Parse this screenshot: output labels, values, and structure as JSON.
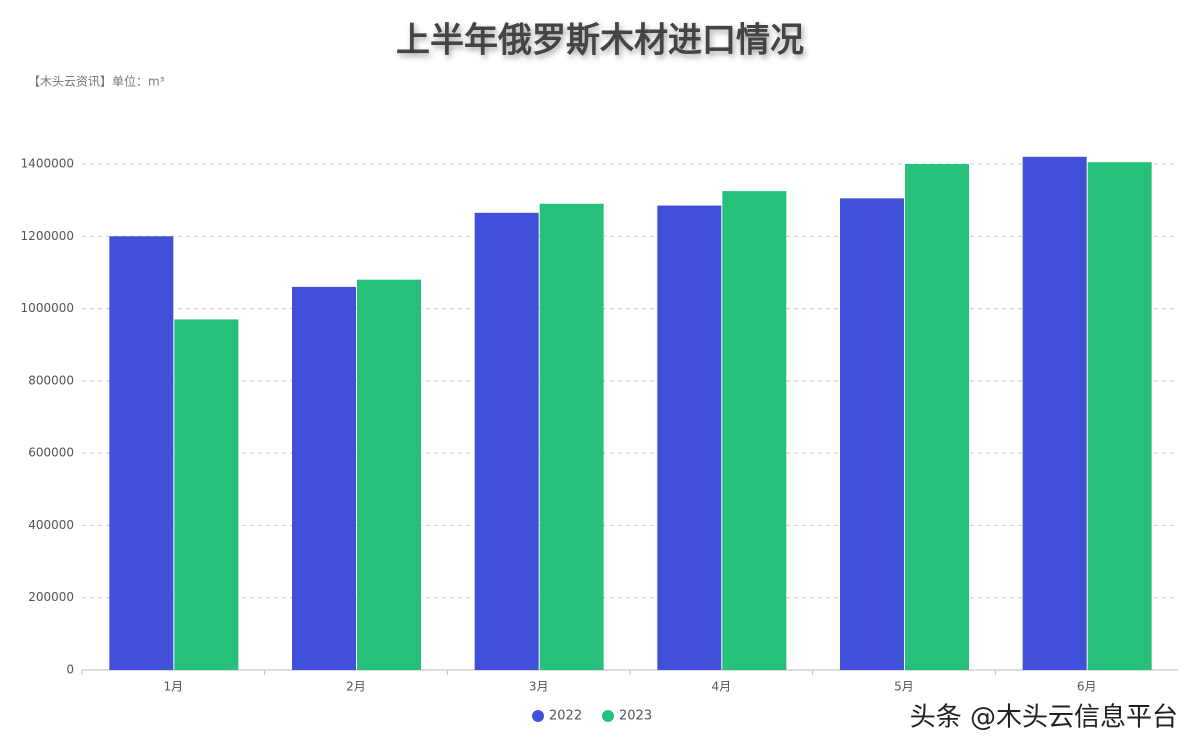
{
  "chart_data": {
    "type": "bar",
    "title": "上半年俄罗斯木材进口情况",
    "subtitle": "【木头云资讯】单位：m³",
    "categories": [
      "1月",
      "2月",
      "3月",
      "4月",
      "5月",
      "6月"
    ],
    "series": [
      {
        "name": "2022",
        "color": "#4150d8",
        "values": [
          1200000,
          1060000,
          1265000,
          1285000,
          1305000,
          1420000
        ]
      },
      {
        "name": "2023",
        "color": "#27c07b",
        "values": [
          970000,
          1080000,
          1290000,
          1325000,
          1400000,
          1405000
        ]
      }
    ],
    "ylim": [
      0,
      1500000
    ],
    "yticks": [
      0,
      200000,
      400000,
      600000,
      800000,
      1000000,
      1200000,
      1400000
    ],
    "grid": true,
    "legend": "bottom",
    "watermark": "头条 @木头云信息平台"
  }
}
